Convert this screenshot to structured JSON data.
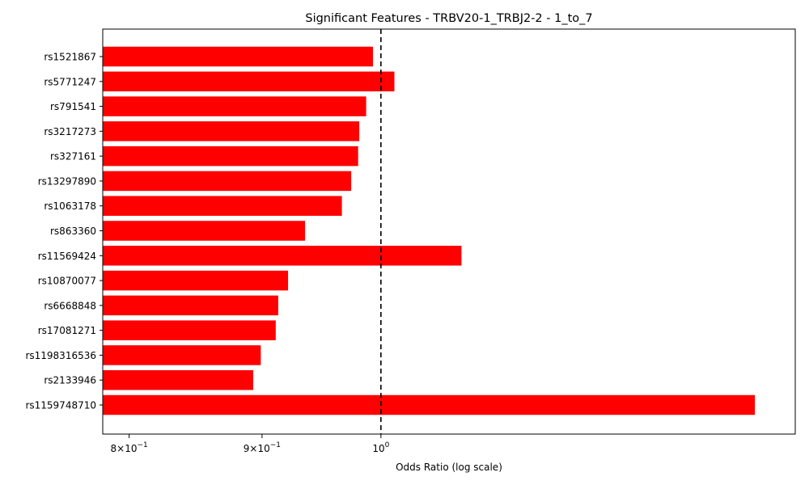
{
  "chart_data": {
    "type": "bar",
    "orientation": "horizontal",
    "title": "Significant Features - TRBV20-1_TRBJ2-2 - 1_to_7",
    "xlabel": "Odds Ratio (log scale)",
    "ylabel": "",
    "x_scale": "log",
    "xlim": [
      0.7815,
      1.4437
    ],
    "x_ticks": [
      {
        "value": 0.8,
        "mantissa": "8",
        "base": "10",
        "exponent": "−1"
      },
      {
        "value": 0.9,
        "mantissa": "9",
        "base": "10",
        "exponent": "−1"
      },
      {
        "value": 1.0,
        "mantissa": "",
        "base": "10",
        "exponent": "0"
      }
    ],
    "reference_line": {
      "value": 1.0,
      "style": "dashed",
      "color": "#000000"
    },
    "bar_color": "#ff0000",
    "grid": false,
    "categories": [
      "rs1521867",
      "rs5771247",
      "rs791541",
      "rs3217273",
      "rs327161",
      "rs13297890",
      "rs1063178",
      "rs863360",
      "rs11569424",
      "rs10870077",
      "rs6668848",
      "rs17081271",
      "rs1198316536",
      "rs2133946",
      "rs1159748710"
    ],
    "values": [
      0.993,
      1.012,
      0.987,
      0.981,
      0.98,
      0.974,
      0.966,
      0.935,
      1.074,
      0.921,
      0.913,
      0.911,
      0.899,
      0.893,
      1.393
    ]
  }
}
